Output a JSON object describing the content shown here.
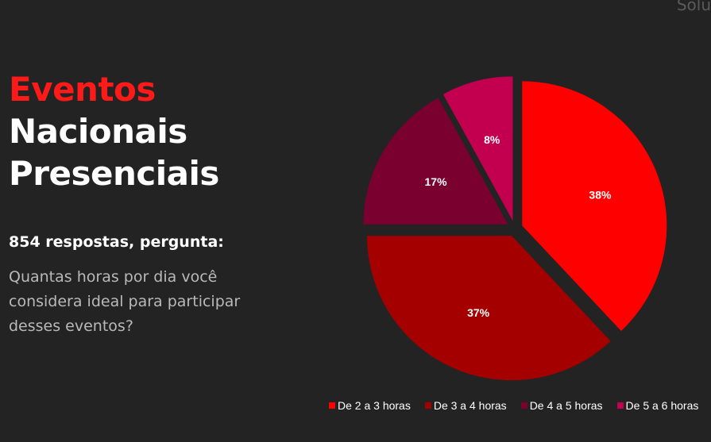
{
  "corner_text": "Solu",
  "title": {
    "line1": "Eventos",
    "line2": "Nacionais",
    "line3": "Presenciais"
  },
  "responses_label": "854 respostas, pergunta:",
  "question": "Quantas horas por dia você considera ideal para participar desses eventos?",
  "chart_data": {
    "type": "pie",
    "categories": [
      "De 2 a 3 horas",
      "De 3 a 4 horas",
      "De 4 a 5 horas",
      "De 5 a 6 horas"
    ],
    "values": [
      38,
      37,
      17,
      8
    ],
    "labels": [
      "38%",
      "37%",
      "17%",
      "8%"
    ],
    "colors": [
      "#ff0000",
      "#a50000",
      "#7a0030",
      "#c2004f"
    ],
    "legend_position": "bottom",
    "exploded": true
  }
}
